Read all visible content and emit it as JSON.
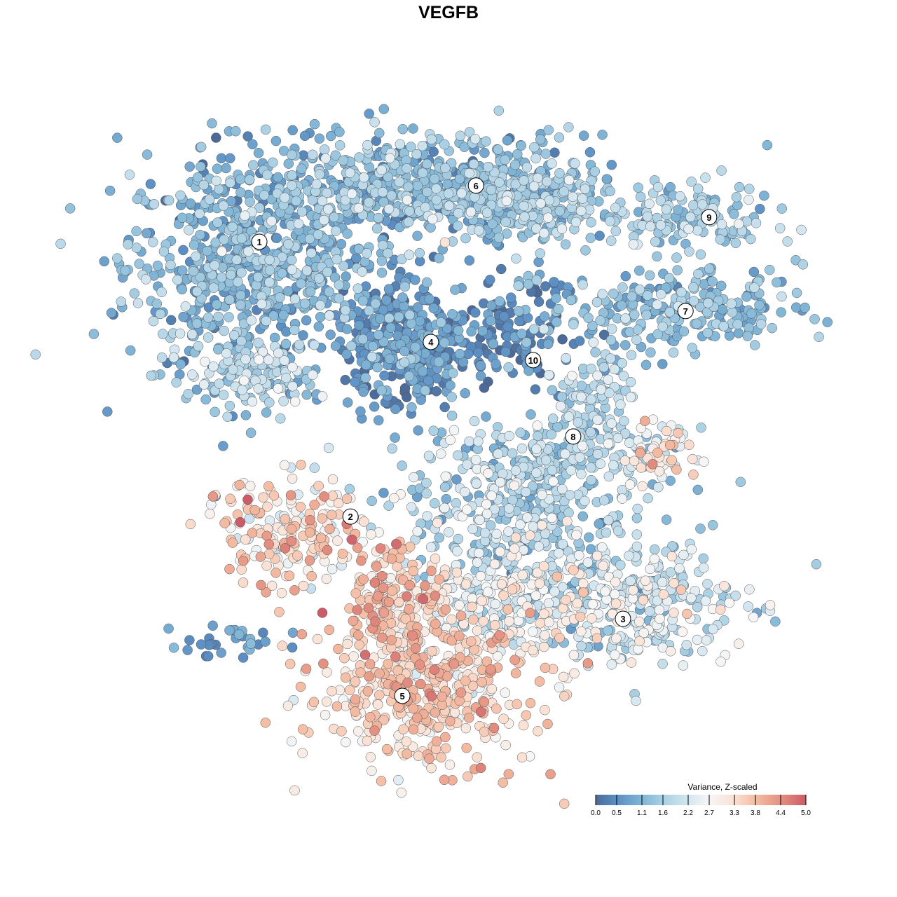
{
  "chart_data": {
    "type": "scatter",
    "title": "VEGFB",
    "xlabel": "",
    "ylabel": "",
    "xlim": [
      -10,
      10
    ],
    "ylim": [
      -10,
      10
    ],
    "grid": false,
    "note": "embedding; points summarised as clusters (center, sd, count, mean value)",
    "clusters": [
      {
        "id": "1",
        "center": [
          -6.25,
          5.0
        ],
        "sd": [
          1.9,
          1.7
        ],
        "n": 700,
        "mean": 1.1,
        "vsd": 0.5
      },
      {
        "id": "1",
        "center": [
          -6.25,
          1.67
        ],
        "sd": [
          0.8,
          0.5
        ],
        "n": 100,
        "mean": 1.9,
        "vsd": 0.4
      },
      {
        "id": "6",
        "center": [
          -1.25,
          7.3
        ],
        "sd": [
          2.7,
          0.8
        ],
        "n": 600,
        "mean": 1.2,
        "vsd": 0.5
      },
      {
        "id": "6",
        "center": [
          2.1,
          6.9
        ],
        "sd": [
          1.25,
          0.6
        ],
        "n": 200,
        "mean": 1.4,
        "vsd": 0.5
      },
      {
        "id": "4",
        "center": [
          -1.67,
          2.7
        ],
        "sd": [
          1.0,
          0.95
        ],
        "n": 350,
        "mean": 0.6,
        "vsd": 0.4
      },
      {
        "id": "10",
        "center": [
          1.67,
          3.1
        ],
        "sd": [
          0.8,
          0.7
        ],
        "n": 120,
        "mean": 0.4,
        "vsd": 0.4
      },
      {
        "id": "9",
        "center": [
          6.67,
          6.46
        ],
        "sd": [
          1.25,
          0.5
        ],
        "n": 150,
        "mean": 1.5,
        "vsd": 0.4
      },
      {
        "id": "7",
        "center": [
          6.25,
          3.75
        ],
        "sd": [
          1.9,
          0.6
        ],
        "n": 250,
        "mean": 1.2,
        "vsd": 0.4
      },
      {
        "id": "8",
        "center": [
          3.96,
          1.25
        ],
        "sd": [
          0.6,
          0.6
        ],
        "n": 80,
        "mean": 1.8,
        "vsd": 0.4
      },
      {
        "id": "8",
        "center": [
          2.5,
          -0.6
        ],
        "sd": [
          1.9,
          0.6
        ],
        "n": 200,
        "mean": 1.6,
        "vsd": 0.5
      },
      {
        "id": "8",
        "center": [
          5.6,
          -0.6
        ],
        "sd": [
          0.6,
          0.5
        ],
        "n": 70,
        "mean": 2.8,
        "vsd": 0.6
      },
      {
        "id": "3",
        "center": [
          1.67,
          -2.5
        ],
        "sd": [
          1.67,
          1.0
        ],
        "n": 300,
        "mean": 1.7,
        "vsd": 0.6
      },
      {
        "id": "2",
        "center": [
          -5.2,
          -2.9
        ],
        "sd": [
          1.25,
          0.8
        ],
        "n": 200,
        "mean": 3.2,
        "vsd": 0.6
      },
      {
        "id": "3",
        "center": [
          5.0,
          -5.0
        ],
        "sd": [
          1.67,
          0.95
        ],
        "n": 350,
        "mean": 2.1,
        "vsd": 0.6
      },
      {
        "id": "5",
        "center": [
          -1.25,
          -7.5
        ],
        "sd": [
          1.67,
          1.15
        ],
        "n": 500,
        "mean": 3.4,
        "vsd": 0.5
      },
      {
        "id": "5",
        "center": [
          -1.9,
          -4.8
        ],
        "sd": [
          0.7,
          0.8
        ],
        "n": 150,
        "mean": 3.6,
        "vsd": 0.5
      },
      {
        "id": "3",
        "center": [
          0.83,
          -5.0
        ],
        "sd": [
          1.25,
          0.8
        ],
        "n": 200,
        "mean": 2.5,
        "vsd": 0.6
      },
      {
        "id": "other",
        "center": [
          -6.67,
          -6.25
        ],
        "sd": [
          0.8,
          0.3
        ],
        "n": 30,
        "mean": 0.6,
        "vsd": 0.3
      }
    ],
    "cluster_labels": [
      {
        "label": "1",
        "pos": [
          -6.04,
          5.73
        ]
      },
      {
        "label": "2",
        "pos": [
          -3.33,
          -2.44
        ]
      },
      {
        "label": "3",
        "pos": [
          4.77,
          -5.48
        ]
      },
      {
        "label": "4",
        "pos": [
          -0.94,
          2.75
        ]
      },
      {
        "label": "5",
        "pos": [
          -1.79,
          -7.77
        ]
      },
      {
        "label": "6",
        "pos": [
          0.4,
          7.4
        ]
      },
      {
        "label": "7",
        "pos": [
          6.63,
          3.67
        ]
      },
      {
        "label": "8",
        "pos": [
          3.29,
          -0.06
        ]
      },
      {
        "label": "9",
        "pos": [
          7.33,
          6.46
        ]
      },
      {
        "label": "10",
        "pos": [
          2.1,
          2.21
        ]
      }
    ],
    "colorbar": {
      "title": "Variance, Z-scaled",
      "placement": "bottom-right",
      "range": [
        0,
        5
      ],
      "ticks": [
        "0.0",
        "0.5",
        "1.1",
        "1.6",
        "2.2",
        "2.7",
        "3.3",
        "3.8",
        "4.4",
        "5.0"
      ],
      "colors": [
        "#4b6a97",
        "#5b8fc4",
        "#80b5d6",
        "#aad0e4",
        "#d4e6f0",
        "#f6f6f6",
        "#fbe0d2",
        "#f4bca3",
        "#e49181",
        "#cc5a67"
      ]
    }
  }
}
